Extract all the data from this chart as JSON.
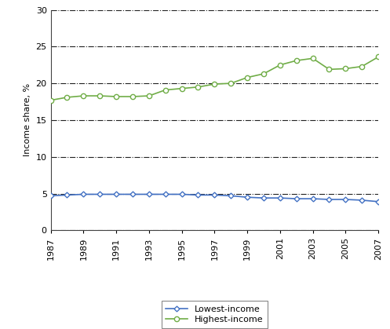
{
  "years": [
    1987,
    1988,
    1989,
    1990,
    1991,
    1992,
    1993,
    1994,
    1995,
    1996,
    1997,
    1998,
    1999,
    2000,
    2001,
    2002,
    2003,
    2004,
    2005,
    2006,
    2007
  ],
  "lowest_income": [
    4.7,
    4.8,
    4.9,
    4.9,
    4.9,
    4.9,
    4.9,
    4.9,
    4.9,
    4.8,
    4.8,
    4.7,
    4.5,
    4.4,
    4.4,
    4.3,
    4.3,
    4.2,
    4.2,
    4.1,
    3.9
  ],
  "highest_income": [
    17.7,
    18.1,
    18.3,
    18.3,
    18.2,
    18.2,
    18.3,
    19.1,
    19.3,
    19.5,
    19.9,
    20.0,
    20.8,
    21.3,
    22.5,
    23.1,
    23.4,
    21.9,
    22.0,
    22.3,
    23.6
  ],
  "lowest_color": "#4472C4",
  "highest_color": "#70AD47",
  "ylabel": "Income share, %",
  "ylim": [
    0,
    30
  ],
  "yticks": [
    0,
    5,
    10,
    15,
    20,
    25,
    30
  ],
  "xtick_labels": [
    "1987",
    "1989",
    "1991",
    "1993",
    "1995",
    "1997",
    "1999",
    "2001",
    "2003",
    "2005",
    "2007"
  ],
  "xtick_years": [
    1987,
    1989,
    1991,
    1993,
    1995,
    1997,
    1999,
    2001,
    2003,
    2005,
    2007
  ],
  "legend_lowest": "Lowest-income",
  "legend_highest": "Highest-income",
  "bg_color": "#ffffff",
  "grid_color": "#222222"
}
